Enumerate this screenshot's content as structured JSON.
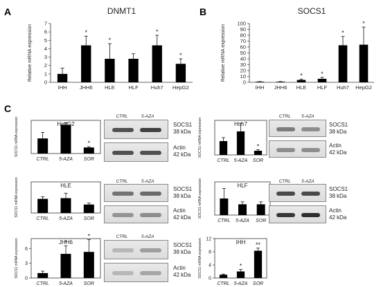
{
  "panels": {
    "a": "A",
    "b": "B",
    "c": "C"
  },
  "chart_data": [
    {
      "id": "A",
      "type": "bar",
      "title": "DNMT1",
      "ylabel": "Relative mRNA expression",
      "categories": [
        "IHH",
        "JHH6",
        "HLE",
        "HLF",
        "Huh7",
        "HepG2"
      ],
      "values": [
        1.0,
        4.4,
        2.8,
        2.8,
        4.4,
        2.2
      ],
      "errors": [
        0.7,
        1.1,
        1.8,
        0.6,
        1.2,
        0.6
      ],
      "significance": [
        "",
        "*",
        "*",
        "",
        "*",
        "*"
      ],
      "ylim": [
        0,
        7
      ],
      "yticks": [
        0,
        1,
        2,
        3,
        4,
        5,
        6,
        7
      ]
    },
    {
      "id": "B",
      "type": "bar",
      "title": "SOCS1",
      "ylabel": "Relative mRNA expression",
      "categories": [
        "IHH",
        "JHH6",
        "HLE",
        "HLF",
        "Huh7",
        "HepG2"
      ],
      "values": [
        1.0,
        1.0,
        4.0,
        6.0,
        63.0,
        64.0
      ],
      "errors": [
        0.3,
        0.3,
        1.5,
        2.5,
        15.0,
        30.0
      ],
      "significance": [
        "",
        "",
        "*",
        "*",
        "*",
        "*"
      ],
      "ylim": [
        0,
        100
      ],
      "yticks": [
        0,
        10,
        20,
        30,
        40,
        50,
        60,
        70,
        80,
        90,
        100
      ]
    },
    {
      "id": "C-HepG2",
      "type": "bar",
      "title": "HepG2",
      "ylabel": "SOCS1 mRNA expression",
      "categories": [
        "CTRL",
        "5-AZA",
        "SOR"
      ],
      "values": [
        1.0,
        1.9,
        0.4
      ],
      "errors": [
        0.4,
        0.15,
        0.05
      ],
      "significance": [
        "",
        "",
        "*"
      ],
      "ylim": [
        0,
        2.2
      ]
    },
    {
      "id": "C-Huh7",
      "type": "bar",
      "title": "Huh7",
      "ylabel": "SOCS1 mRNA expression",
      "categories": [
        "CTRL",
        "5-AZA",
        "SOR"
      ],
      "values": [
        1.0,
        1.7,
        0.3
      ],
      "errors": [
        0.25,
        0.6,
        0.08
      ],
      "significance": [
        "",
        "",
        "*"
      ],
      "ylim": [
        0,
        2.5
      ]
    },
    {
      "id": "C-HLE",
      "type": "bar",
      "title": "HLE",
      "ylabel": "SOCS1 mRNA expression",
      "categories": [
        "CTRL",
        "5-AZA",
        "SOR"
      ],
      "values": [
        1.0,
        1.05,
        0.6
      ],
      "errors": [
        0.15,
        0.35,
        0.1
      ],
      "significance": [
        "",
        "",
        ""
      ],
      "ylim": [
        0,
        2.2
      ]
    },
    {
      "id": "C-HLF",
      "type": "bar",
      "title": "HLF",
      "ylabel": "SOCS1 mRNA expression",
      "categories": [
        "CTRL",
        "5-AZA",
        "SOR"
      ],
      "values": [
        1.0,
        0.65,
        0.65
      ],
      "errors": [
        0.6,
        0.15,
        0.15
      ],
      "significance": [
        "",
        "",
        ""
      ],
      "ylim": [
        0,
        2.0
      ]
    },
    {
      "id": "C-JHH6",
      "type": "bar",
      "title": "JHH6",
      "ylabel": "SOCS1 mRNA expression",
      "categories": [
        "CTRL",
        "5-AZA",
        "SOR"
      ],
      "values": [
        1.0,
        4.9,
        5.3
      ],
      "errors": [
        0.4,
        1.6,
        2.5
      ],
      "significance": [
        "",
        "*",
        "*"
      ],
      "ylim": [
        0,
        8
      ],
      "yticks": [
        0,
        3,
        6
      ]
    },
    {
      "id": "C-IHH",
      "type": "bar",
      "title": "IHH",
      "ylabel": "SOCS1 mRNA expression",
      "categories": [
        "CTRL",
        "5-AZA",
        "SOR"
      ],
      "values": [
        1.0,
        2.0,
        8.3
      ],
      "errors": [
        0.2,
        0.6,
        0.8
      ],
      "significance": [
        "",
        "*",
        "**"
      ],
      "ylim": [
        0,
        12
      ],
      "yticks": [
        0,
        4,
        8,
        12
      ]
    }
  ],
  "blots": [
    {
      "id": "HepG2",
      "lanes": [
        "CTRL",
        "5-AZA"
      ],
      "target_label": "SOCS1",
      "target_kda": "38 kDa",
      "control_label": "Actin",
      "control_kda": "42 kDa"
    },
    {
      "id": "Huh7",
      "lanes": [
        "CTRL",
        "5-AZA"
      ],
      "target_label": "SOCS1",
      "target_kda": "38 kDa",
      "control_label": "Actin",
      "control_kda": "42 kDa"
    },
    {
      "id": "HLE",
      "lanes": [
        "CTRL",
        "5-AZA"
      ],
      "target_label": "SOCS1",
      "target_kda": "38 kDa",
      "control_label": "Actin",
      "control_kda": "42 kDa"
    },
    {
      "id": "HLF",
      "lanes": [
        "CTRL",
        "5-AZA"
      ],
      "target_label": "SOCS1",
      "target_kda": "38 kDa",
      "control_label": "Actin",
      "control_kda": "42 kDa"
    },
    {
      "id": "JHH6",
      "lanes": [
        "CTRL",
        "5-AZA"
      ],
      "target_label": "SOCS1",
      "target_kda": "38 kDa",
      "control_label": "Actin",
      "control_kda": "42 kDa"
    }
  ]
}
